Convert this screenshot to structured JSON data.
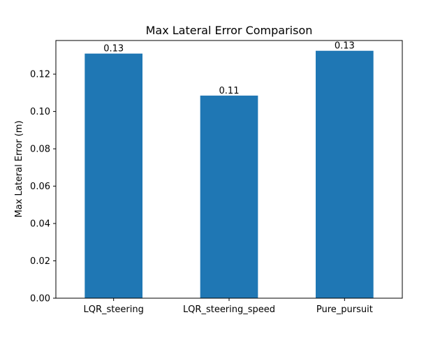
{
  "chart_data": {
    "type": "bar",
    "title": "Max Lateral Error Comparison",
    "xlabel": "",
    "ylabel": "Max Lateral Error (m)",
    "categories": [
      "LQR_steering",
      "LQR_steering_speed",
      "Pure_pursuit"
    ],
    "values": [
      0.131,
      0.1085,
      0.1325
    ],
    "value_labels": [
      "0.13",
      "0.11",
      "0.13"
    ],
    "ylim": [
      0,
      0.138
    ],
    "yticks": [
      0.0,
      0.02,
      0.04,
      0.06,
      0.08,
      0.1,
      0.12
    ],
    "ytick_labels": [
      "0.00",
      "0.02",
      "0.04",
      "0.06",
      "0.08",
      "0.10",
      "0.12"
    ],
    "bar_color": "#1f77b4",
    "grid": false,
    "legend": "none"
  }
}
